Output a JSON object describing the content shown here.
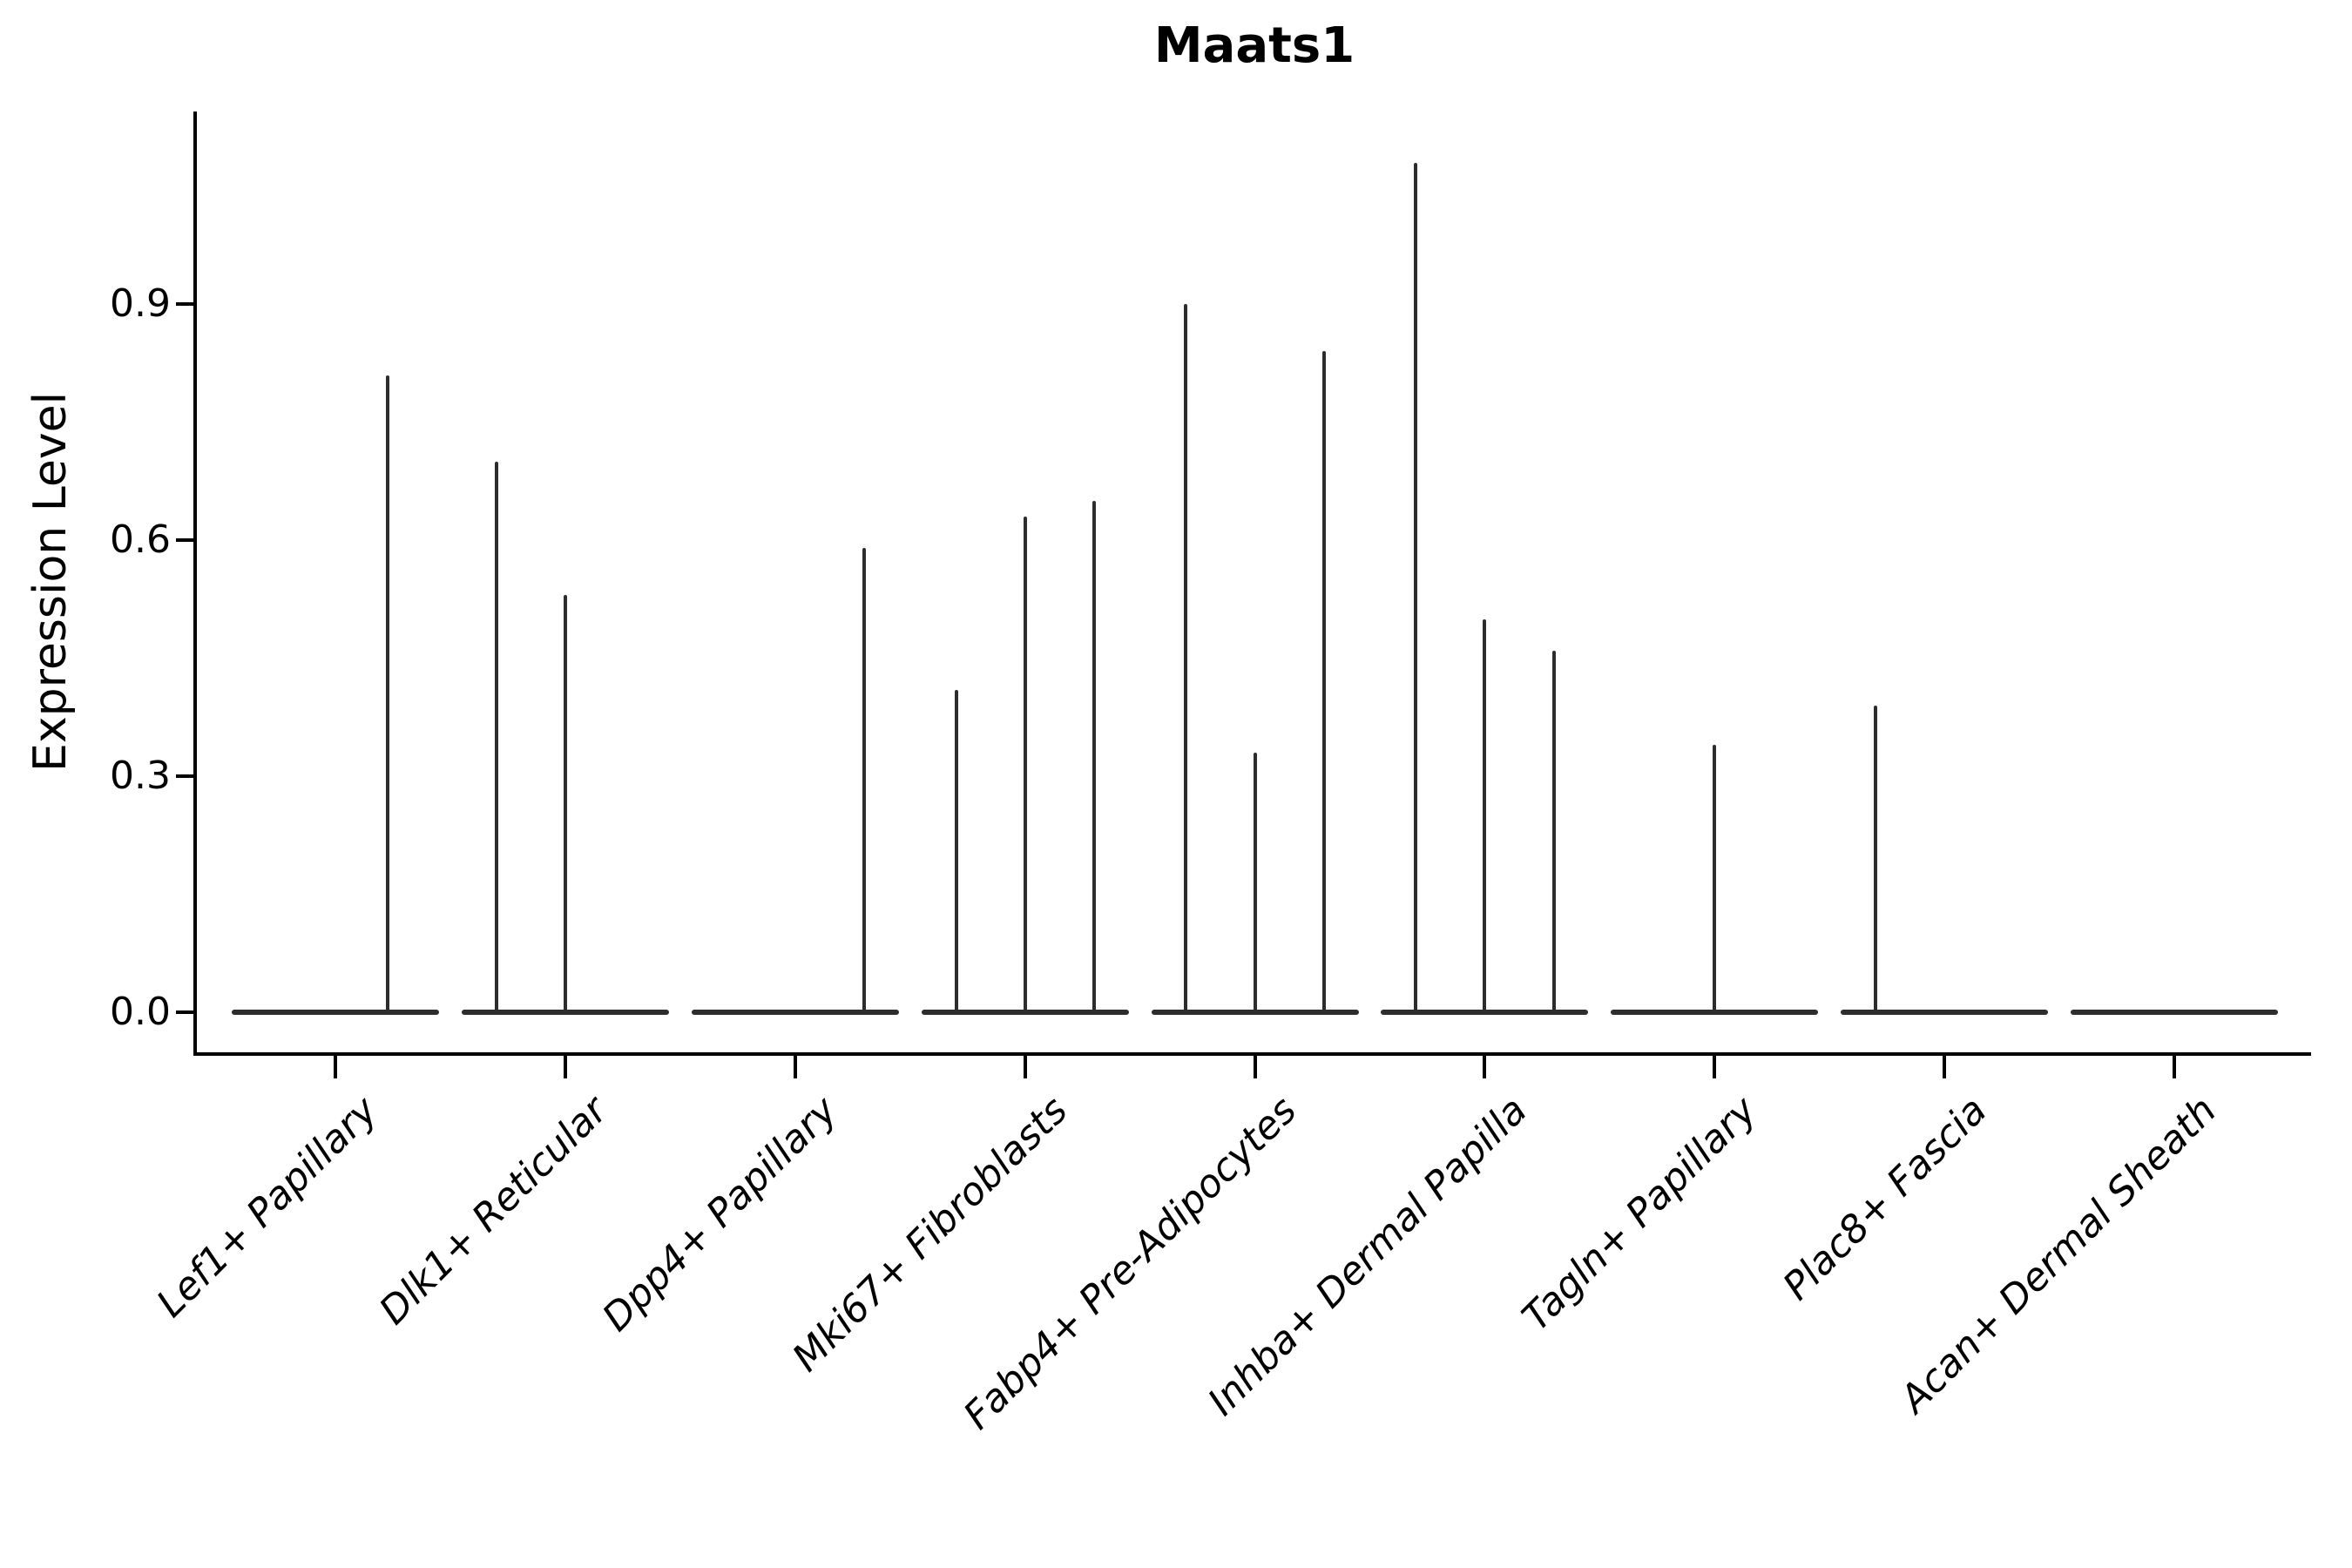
{
  "title": "Maats1",
  "axes": {
    "y_label": "Expression Level",
    "y_tick_labels": [
      "0.0",
      "0.3",
      "0.6",
      "0.9"
    ],
    "x_tick_labels": [
      "Lef1+ Papillary",
      "Dlk1+ Reticular",
      "Dpp4+ Papillary",
      "Mki67+ Fibroblasts",
      "Fabp4+ Pre-Adipocytes",
      "Inhba+ Dermal Papilla",
      "Tagln+ Papillary",
      "Plac8+ Fascia",
      "Acan+ Dermal Sheath"
    ]
  },
  "chart_data": {
    "type": "violin",
    "title": "Maats1",
    "xlabel": "",
    "ylabel": "Expression Level",
    "ylim": [
      0,
      1.13
    ],
    "y_ticks": [
      0.0,
      0.3,
      0.6,
      0.9
    ],
    "grid": false,
    "legend": "none",
    "style_note": "Seurat-style single-gene violin plot: each cluster shows flat collapsed violins at expression 0 with thin vertical density spikes reaching the maximum expression of the few expressing cells; up to three dodged sub-violins per cluster",
    "categories": [
      "Lef1+ Papillary",
      "Dlk1+ Reticular",
      "Dpp4+ Papillary",
      "Mki67+ Fibroblasts",
      "Fabp4+ Pre-Adipocytes",
      "Inhba+ Dermal Papilla",
      "Tagln+ Papillary",
      "Plac8+ Fascia",
      "Acan+ Dermal Sheath"
    ],
    "violin_half_width_units": 0.45,
    "series": [
      {
        "category": "Lef1+ Papillary",
        "spikes": [
          {
            "offset": 0.225,
            "max": 0.81
          }
        ]
      },
      {
        "category": "Dlk1+ Reticular",
        "spikes": [
          {
            "offset": -0.3,
            "max": 0.7
          },
          {
            "offset": 0.0,
            "max": 0.53
          }
        ]
      },
      {
        "category": "Dpp4+ Papillary",
        "spikes": [
          {
            "offset": 0.3,
            "max": 0.59
          }
        ]
      },
      {
        "category": "Mki67+ Fibroblasts",
        "spikes": [
          {
            "offset": -0.3,
            "max": 0.41
          },
          {
            "offset": 0.0,
            "max": 0.63
          },
          {
            "offset": 0.3,
            "max": 0.65
          }
        ]
      },
      {
        "category": "Fabp4+ Pre-Adipocytes",
        "spikes": [
          {
            "offset": -0.3,
            "max": 0.9
          },
          {
            "offset": 0.0,
            "max": 0.33
          },
          {
            "offset": 0.3,
            "max": 0.84
          }
        ]
      },
      {
        "category": "Inhba+ Dermal Papilla",
        "spikes": [
          {
            "offset": -0.3,
            "max": 1.08
          },
          {
            "offset": 0.0,
            "max": 0.5
          },
          {
            "offset": 0.3,
            "max": 0.46
          }
        ]
      },
      {
        "category": "Tagln+ Papillary",
        "spikes": [
          {
            "offset": 0.0,
            "max": 0.34
          }
        ]
      },
      {
        "category": "Plac8+ Fascia",
        "spikes": [
          {
            "offset": -0.3,
            "max": 0.39
          }
        ]
      },
      {
        "category": "Acan+ Dermal Sheath",
        "spikes": []
      }
    ]
  },
  "colors": {
    "violin": "#2d2d2d",
    "axis": "#000000",
    "text": "#000000",
    "background": "#ffffff"
  }
}
